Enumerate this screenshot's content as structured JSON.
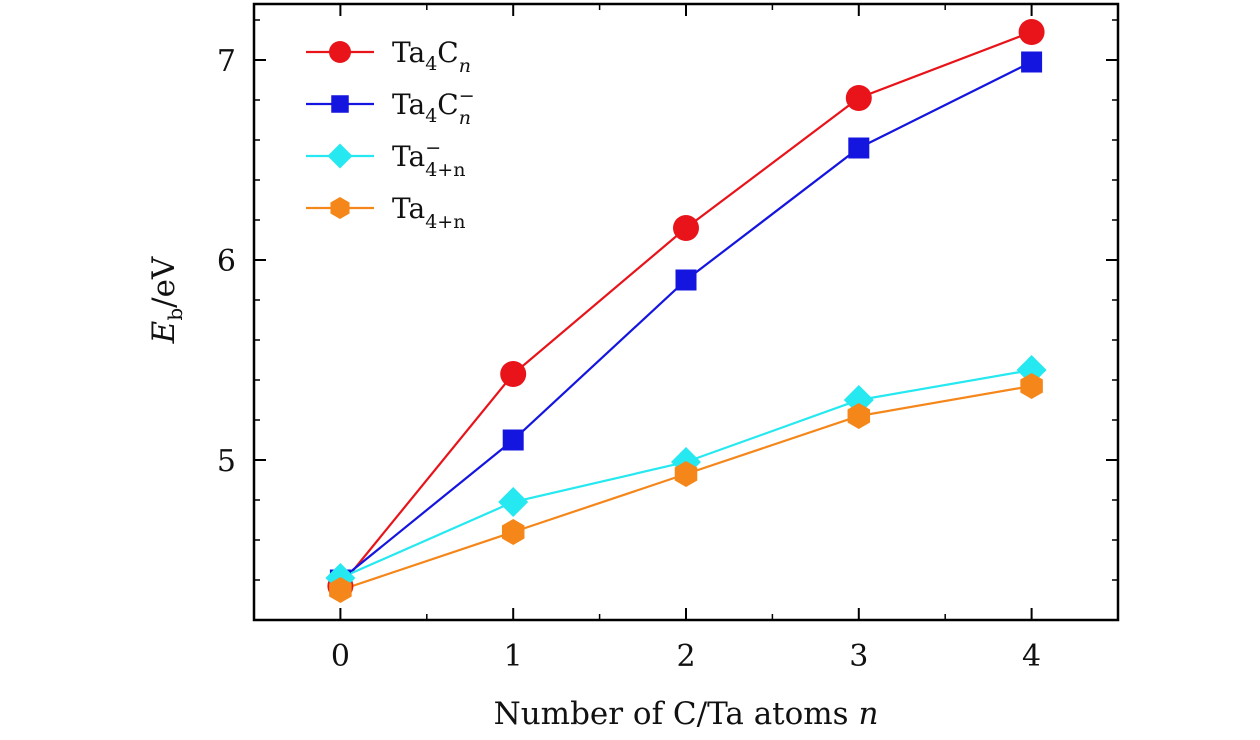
{
  "chart_data": {
    "type": "line",
    "x": [
      0,
      1,
      2,
      3,
      4
    ],
    "xlim": [
      -0.5,
      4.5
    ],
    "ylim": [
      4.2,
      7.28
    ],
    "x_ticks": [
      0,
      1,
      2,
      3,
      4
    ],
    "y_ticks": [
      5,
      6,
      7
    ],
    "x_ticks_display": [
      "0",
      "1",
      "2",
      "3",
      "4"
    ],
    "y_ticks_display": [
      "5",
      "6",
      "7"
    ],
    "xlabel": "Number of C/Ta atoms n",
    "ylabel": "Eb/eV",
    "legend_position": "top-left",
    "grid": false,
    "series": [
      {
        "name": "Ta4Cn",
        "legend": {
          "base": "Ta",
          "sub1": "4",
          "mid": "C",
          "sup": "",
          "sub2": "n"
        },
        "color": "#e8141a",
        "marker": "circle",
        "values": [
          4.37,
          5.43,
          6.16,
          6.81,
          7.14
        ]
      },
      {
        "name": "Ta4Cn−",
        "legend": {
          "base": "Ta",
          "sub1": "4",
          "mid": "C",
          "sup": "−",
          "sub2": "n"
        },
        "color": "#1515e0",
        "marker": "square",
        "values": [
          4.4,
          5.1,
          5.9,
          6.56,
          6.99
        ]
      },
      {
        "name": "Ta4+n−",
        "legend": {
          "base": "Ta",
          "sub1": "",
          "mid": "",
          "sup": "−",
          "sub2": "4+n"
        },
        "color": "#25e8f0",
        "marker": "diamond",
        "values": [
          4.41,
          4.79,
          4.99,
          5.3,
          5.45
        ]
      },
      {
        "name": "Ta4+n",
        "legend": {
          "base": "Ta",
          "sub1": "",
          "mid": "",
          "sup": "",
          "sub2": "4+n"
        },
        "color": "#f5861a",
        "marker": "hexagon",
        "values": [
          4.35,
          4.64,
          4.93,
          5.22,
          5.37
        ]
      }
    ]
  }
}
